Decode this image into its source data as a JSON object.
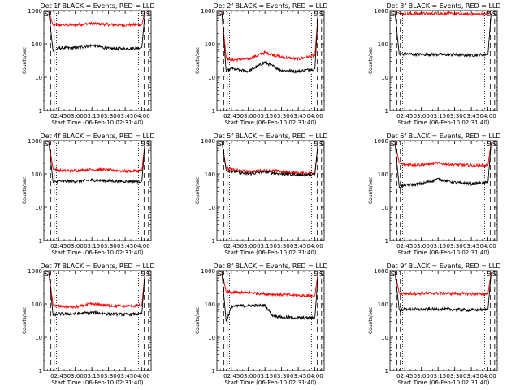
{
  "figure": {
    "xlabel": "Start Time (06-Feb-10 02:31:40)",
    "ylabel": "Counts/sec",
    "colors": {
      "events": "#000000",
      "lld": "#ff0000",
      "markers": "#000000"
    }
  },
  "chart_data": [
    {
      "type": "line",
      "title": "Det 1f BLACK = Events, RED = LLD",
      "xlabel": "Start Time (06-Feb-10 02:31:40)",
      "ylabel": "Counts/sec",
      "x_ticks": [
        "02:45",
        "03:00",
        "03:15",
        "03:30",
        "03:45",
        "04:00"
      ],
      "y_ticks": [
        "1",
        "10",
        "100",
        "1000"
      ],
      "y_scale": "log",
      "ylim": [
        1,
        1000
      ],
      "xlim": [
        "02:31:40",
        "04:08:20"
      ],
      "corner_labels": {
        "left": "S",
        "right": "E S"
      },
      "series": [
        {
          "name": "Events",
          "color": "#000000",
          "x": [
            "02:36",
            "02:40",
            "02:45",
            "03:00",
            "03:15",
            "03:30",
            "03:45",
            "04:00",
            "04:03"
          ],
          "y": [
            1000,
            60,
            75,
            75,
            90,
            72,
            72,
            78,
            1000
          ]
        },
        {
          "name": "LLD",
          "color": "#ff0000",
          "x": [
            "02:36",
            "02:40",
            "02:45",
            "03:00",
            "03:15",
            "03:30",
            "03:45",
            "04:00",
            "04:03"
          ],
          "y": [
            1000,
            360,
            370,
            370,
            410,
            380,
            370,
            380,
            1000
          ]
        }
      ],
      "vertical_lines": {
        "dashed": [
          "02:38",
          "02:41",
          "04:02",
          "04:06"
        ],
        "dotted": [
          "02:43",
          "03:57"
        ]
      }
    },
    {
      "type": "line",
      "title": "Det 2f BLACK = Events, RED = LLD",
      "xlabel": "Start Time (06-Feb-10 02:31:40)",
      "ylabel": "Counts/sec",
      "x_ticks": [
        "02:45",
        "03:00",
        "03:15",
        "03:30",
        "03:45",
        "04:00"
      ],
      "y_ticks": [
        "1",
        "10",
        "100",
        "1000"
      ],
      "y_scale": "log",
      "ylim": [
        1,
        1000
      ],
      "xlim": [
        "02:31:40",
        "04:08:20"
      ],
      "corner_labels": {
        "left": "S",
        "right": "E S"
      },
      "series": [
        {
          "name": "Events",
          "color": "#000000",
          "x": [
            "02:36",
            "02:40",
            "02:45",
            "03:00",
            "03:15",
            "03:30",
            "03:45",
            "04:00",
            "04:03"
          ],
          "y": [
            1000,
            15,
            18,
            15,
            28,
            16,
            15,
            18,
            1000
          ]
        },
        {
          "name": "LLD",
          "color": "#ff0000",
          "x": [
            "02:36",
            "02:40",
            "02:45",
            "03:00",
            "03:15",
            "03:30",
            "03:45",
            "04:00",
            "04:03"
          ],
          "y": [
            1000,
            38,
            33,
            35,
            55,
            40,
            35,
            45,
            1000
          ]
        }
      ],
      "vertical_lines": {
        "dashed": [
          "02:38",
          "02:41",
          "04:02",
          "04:06"
        ],
        "dotted": [
          "02:43",
          "03:57"
        ]
      }
    },
    {
      "type": "line",
      "title": "Det 3f BLACK = Events, RED = LLD",
      "xlabel": "Start Time (06-Feb-10 02:31:40)",
      "ylabel": "Counts/sec",
      "x_ticks": [
        "02:45",
        "03:00",
        "03:15",
        "03:30",
        "03:45",
        "04:00"
      ],
      "y_ticks": [
        "1",
        "10",
        "100",
        "1000"
      ],
      "y_scale": "log",
      "ylim": [
        1,
        1000
      ],
      "xlim": [
        "02:31:40",
        "04:08:20"
      ],
      "corner_labels": {
        "left": "S",
        "right": "E S"
      },
      "series": [
        {
          "name": "Events",
          "color": "#000000",
          "x": [
            "02:36",
            "02:40",
            "02:45",
            "03:00",
            "03:15",
            "03:30",
            "03:45",
            "04:00",
            "04:03"
          ],
          "y": [
            1000,
            48,
            50,
            48,
            48,
            47,
            45,
            48,
            1000
          ]
        },
        {
          "name": "LLD",
          "color": "#ff0000",
          "x": [
            "02:36",
            "02:40",
            "02:45",
            "03:00",
            "03:15",
            "03:30",
            "03:45",
            "04:00",
            "04:03"
          ],
          "y": [
            1000,
            820,
            800,
            800,
            820,
            800,
            780,
            800,
            1000
          ]
        }
      ],
      "vertical_lines": {
        "dashed": [
          "02:38",
          "02:41",
          "04:02",
          "04:06"
        ],
        "dotted": [
          "02:43",
          "03:57"
        ]
      }
    },
    {
      "type": "line",
      "title": "Det 4f BLACK = Events, RED = LLD",
      "xlabel": "Start Time (06-Feb-10 02:31:40)",
      "ylabel": "Counts/sec",
      "x_ticks": [
        "02:45",
        "03:00",
        "03:15",
        "03:30",
        "03:45",
        "04:00"
      ],
      "y_ticks": [
        "1",
        "10",
        "100",
        "1000"
      ],
      "y_scale": "log",
      "ylim": [
        1,
        1000
      ],
      "xlim": [
        "02:31:40",
        "04:08:20"
      ],
      "corner_labels": {
        "left": "S",
        "right": "E S"
      },
      "series": [
        {
          "name": "Events",
          "color": "#000000",
          "x": [
            "02:36",
            "02:40",
            "02:45",
            "03:00",
            "03:15",
            "03:30",
            "03:45",
            "04:00",
            "04:03"
          ],
          "y": [
            1000,
            55,
            60,
            60,
            65,
            62,
            60,
            60,
            1000
          ]
        },
        {
          "name": "LLD",
          "color": "#ff0000",
          "x": [
            "02:36",
            "02:40",
            "02:45",
            "03:00",
            "03:15",
            "03:30",
            "03:45",
            "04:00",
            "04:03"
          ],
          "y": [
            1000,
            140,
            125,
            125,
            135,
            130,
            120,
            125,
            1000
          ]
        }
      ],
      "vertical_lines": {
        "dashed": [
          "02:38",
          "02:41",
          "04:02",
          "04:06"
        ],
        "dotted": [
          "02:43",
          "03:57"
        ]
      }
    },
    {
      "type": "line",
      "title": "Det 5f BLACK = Events, RED = LLD",
      "xlabel": "Start Time (06-Feb-10 02:31:40)",
      "ylabel": "Counts/sec",
      "x_ticks": [
        "02:45",
        "03:00",
        "03:15",
        "03:30",
        "03:45",
        "04:00"
      ],
      "y_ticks": [
        "1",
        "10",
        "100",
        "1000"
      ],
      "y_scale": "log",
      "ylim": [
        1,
        1000
      ],
      "xlim": [
        "02:31:40",
        "04:08:20"
      ],
      "corner_labels": {
        "left": "S",
        "right": "E S"
      },
      "series": [
        {
          "name": "Events",
          "color": "#000000",
          "x": [
            "02:36",
            "02:40",
            "02:45",
            "03:00",
            "03:15",
            "03:30",
            "03:45",
            "04:00",
            "04:03"
          ],
          "y": [
            1000,
            130,
            120,
            100,
            115,
            100,
            95,
            95,
            1000
          ]
        },
        {
          "name": "LLD",
          "color": "#ff0000",
          "x": [
            "02:36",
            "02:40",
            "02:45",
            "03:00",
            "03:15",
            "03:30",
            "03:45",
            "04:00",
            "04:03"
          ],
          "y": [
            1000,
            150,
            135,
            115,
            130,
            115,
            105,
            105,
            1000
          ]
        }
      ],
      "vertical_lines": {
        "dashed": [
          "02:38",
          "02:41",
          "04:02",
          "04:06"
        ],
        "dotted": [
          "02:43",
          "03:57"
        ]
      }
    },
    {
      "type": "line",
      "title": "Det 6f BLACK = Events, RED = LLD",
      "xlabel": "Start Time (06-Feb-10 02:31:40)",
      "ylabel": "Counts/sec",
      "x_ticks": [
        "02:45",
        "03:00",
        "03:15",
        "03:30",
        "03:45",
        "04:00"
      ],
      "y_ticks": [
        "1",
        "10",
        "100",
        "1000"
      ],
      "y_scale": "log",
      "ylim": [
        1,
        1000
      ],
      "xlim": [
        "02:31:40",
        "04:08:20"
      ],
      "corner_labels": {
        "left": "S",
        "right": "E S"
      },
      "series": [
        {
          "name": "Events",
          "color": "#000000",
          "x": [
            "02:36",
            "02:40",
            "02:45",
            "03:00",
            "03:15",
            "03:30",
            "03:45",
            "04:00",
            "04:03"
          ],
          "y": [
            1000,
            40,
            45,
            50,
            70,
            55,
            50,
            55,
            1000
          ]
        },
        {
          "name": "LLD",
          "color": "#ff0000",
          "x": [
            "02:36",
            "02:40",
            "02:45",
            "03:00",
            "03:15",
            "03:30",
            "03:45",
            "04:00",
            "04:03"
          ],
          "y": [
            1000,
            210,
            190,
            190,
            210,
            190,
            180,
            180,
            1000
          ]
        }
      ],
      "vertical_lines": {
        "dashed": [
          "02:38",
          "02:41",
          "04:02",
          "04:06"
        ],
        "dotted": [
          "02:43",
          "03:57"
        ]
      }
    },
    {
      "type": "line",
      "title": "Det 7f BLACK = Events, RED = LLD",
      "xlabel": "Start Time (06-Feb-10 02:31:40)",
      "ylabel": "Counts/sec",
      "x_ticks": [
        "02:45",
        "03:00",
        "03:15",
        "03:30",
        "03:45",
        "04:00"
      ],
      "y_ticks": [
        "1",
        "10",
        "100",
        "1000"
      ],
      "y_scale": "log",
      "ylim": [
        1,
        1000
      ],
      "xlim": [
        "02:31:40",
        "04:08:20"
      ],
      "corner_labels": {
        "left": "S",
        "right": "E S"
      },
      "series": [
        {
          "name": "Events",
          "color": "#000000",
          "x": [
            "02:36",
            "02:40",
            "02:45",
            "03:00",
            "03:15",
            "03:30",
            "03:45",
            "04:00",
            "04:03"
          ],
          "y": [
            1000,
            45,
            50,
            50,
            55,
            50,
            48,
            50,
            1000
          ]
        },
        {
          "name": "LLD",
          "color": "#ff0000",
          "x": [
            "02:36",
            "02:40",
            "02:45",
            "03:00",
            "03:15",
            "03:30",
            "03:45",
            "04:00",
            "04:03"
          ],
          "y": [
            1000,
            90,
            85,
            80,
            100,
            90,
            85,
            90,
            1000
          ]
        }
      ],
      "vertical_lines": {
        "dashed": [
          "02:38",
          "02:41",
          "04:02",
          "04:06"
        ],
        "dotted": [
          "02:43",
          "03:57"
        ]
      }
    },
    {
      "type": "line",
      "title": "Det 8f BLACK = Events, RED = LLD",
      "xlabel": "Start Time (06-Feb-10 02:31:40)",
      "ylabel": "Counts/sec",
      "x_ticks": [
        "02:45",
        "03:00",
        "03:15",
        "03:30",
        "03:45",
        "04:00"
      ],
      "y_ticks": [
        "1",
        "10",
        "100",
        "1000"
      ],
      "y_scale": "log",
      "ylim": [
        1,
        1000
      ],
      "xlim": [
        "02:31:40",
        "04:08:20"
      ],
      "corner_labels": {
        "left": "S",
        "right": "E S"
      },
      "series": [
        {
          "name": "Events",
          "color": "#000000",
          "x": [
            "02:36",
            "02:40",
            "02:45",
            "03:00",
            "03:15",
            "03:22",
            "03:30",
            "03:45",
            "04:00",
            "04:03"
          ],
          "y": [
            1000,
            30,
            85,
            90,
            90,
            45,
            40,
            38,
            38,
            1000
          ]
        },
        {
          "name": "LLD",
          "color": "#ff0000",
          "x": [
            "02:36",
            "02:40",
            "02:45",
            "03:00",
            "03:15",
            "03:30",
            "03:45",
            "04:00",
            "04:03"
          ],
          "y": [
            1000,
            230,
            220,
            220,
            200,
            190,
            180,
            175,
            1000
          ]
        }
      ],
      "vertical_lines": {
        "dashed": [
          "02:38",
          "02:41",
          "04:02",
          "04:06"
        ],
        "dotted": [
          "02:43",
          "03:57"
        ]
      }
    },
    {
      "type": "line",
      "title": "Det 9f BLACK = Events, RED = LLD",
      "xlabel": "Start Time (06-Feb-10 02:31:40)",
      "ylabel": "Counts/sec",
      "x_ticks": [
        "02:45",
        "03:00",
        "03:15",
        "03:30",
        "03:45",
        "04:00"
      ],
      "y_ticks": [
        "1",
        "10",
        "100",
        "1000"
      ],
      "y_scale": "log",
      "ylim": [
        1,
        1000
      ],
      "xlim": [
        "02:31:40",
        "04:08:20"
      ],
      "corner_labels": {
        "left": "S",
        "right": "E S"
      },
      "series": [
        {
          "name": "Events",
          "color": "#000000",
          "x": [
            "02:36",
            "02:40",
            "02:45",
            "03:00",
            "03:15",
            "03:30",
            "03:45",
            "04:00",
            "04:03"
          ],
          "y": [
            1000,
            65,
            70,
            68,
            70,
            68,
            65,
            68,
            1000
          ]
        },
        {
          "name": "LLD",
          "color": "#ff0000",
          "x": [
            "02:36",
            "02:40",
            "02:45",
            "03:00",
            "03:15",
            "03:30",
            "03:45",
            "04:00",
            "04:03"
          ],
          "y": [
            1000,
            210,
            205,
            205,
            210,
            205,
            200,
            200,
            1000
          ]
        }
      ],
      "vertical_lines": {
        "dashed": [
          "02:38",
          "02:41",
          "04:02",
          "04:06"
        ],
        "dotted": [
          "02:43",
          "03:57"
        ]
      }
    }
  ]
}
